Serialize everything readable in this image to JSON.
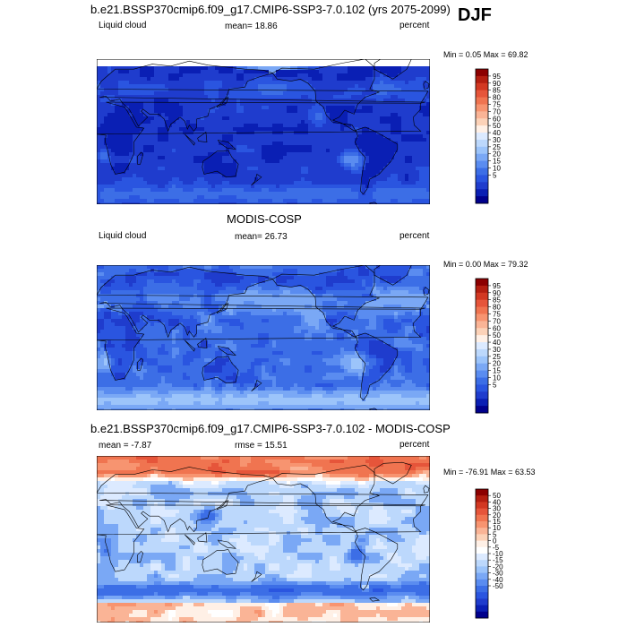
{
  "season": "DJF",
  "colors": {
    "abs_levels": [
      "#00008c",
      "#0a1fb4",
      "#1f3ccd",
      "#2a55e0",
      "#3c6ee6",
      "#5a8cf0",
      "#7aa8f5",
      "#9cc4fa",
      "#bcd8fc",
      "#dceaff",
      "#fff0e6",
      "#fcd2b8",
      "#fab496",
      "#f79470",
      "#f07450",
      "#e6553a",
      "#d23822",
      "#b41e10",
      "#8c0000"
    ],
    "diff_levels": [
      "#00008c",
      "#0a1fb4",
      "#1f3ccd",
      "#2a55e0",
      "#3c6ee6",
      "#5a8cf0",
      "#7aa8f5",
      "#9cc4fa",
      "#bcd8fc",
      "#dceaff",
      "#ffffff",
      "#fff0e6",
      "#fcd2b8",
      "#fab496",
      "#f79470",
      "#f07450",
      "#e6553a",
      "#d23822",
      "#b41e10",
      "#8c0000"
    ]
  },
  "chart_data": [
    {
      "type": "heatmap",
      "title": "b.e21.BSSP370cmip6.f09_g17.CMIP6-SSP3-7.0.102 (yrs 2075-2099)",
      "left_label": "Liquid cloud",
      "mean_label": "mean=  18.86",
      "units": "percent",
      "minmax": "Min =   0.05 Max =  69.82",
      "colorbar_ticks": [
        "95",
        "90",
        "85",
        "80",
        "75",
        "70",
        "60",
        "50",
        "40",
        "30",
        "25",
        "20",
        "15",
        "10",
        "5"
      ],
      "mean": 18.86,
      "min": 0.05,
      "max": 69.82
    },
    {
      "type": "heatmap",
      "title": "MODIS-COSP",
      "left_label": "Liquid cloud",
      "mean_label": "mean=  26.73",
      "units": "percent",
      "minmax": "Min =   0.00 Max =  79.32",
      "colorbar_ticks": [
        "95",
        "90",
        "85",
        "80",
        "75",
        "70",
        "60",
        "50",
        "40",
        "30",
        "25",
        "20",
        "15",
        "10",
        "5"
      ],
      "mean": 26.73,
      "min": 0.0,
      "max": 79.32
    },
    {
      "type": "heatmap",
      "title": "b.e21.BSSP370cmip6.f09_g17.CMIP6-SSP3-7.0.102 - MODIS-COSP",
      "left_label": "mean =  -7.87",
      "mean_label": "rmse =  15.51",
      "units": "percent",
      "minmax": "Min = -76.91 Max =  63.53",
      "colorbar_ticks": [
        "50",
        "40",
        "30",
        "20",
        "15",
        "10",
        "5",
        "0",
        "-5",
        "-10",
        "-15",
        "-20",
        "-30",
        "-40",
        "-50"
      ],
      "mean": -7.87,
      "rmse": 15.51,
      "min": -76.91,
      "max": 63.53
    }
  ]
}
